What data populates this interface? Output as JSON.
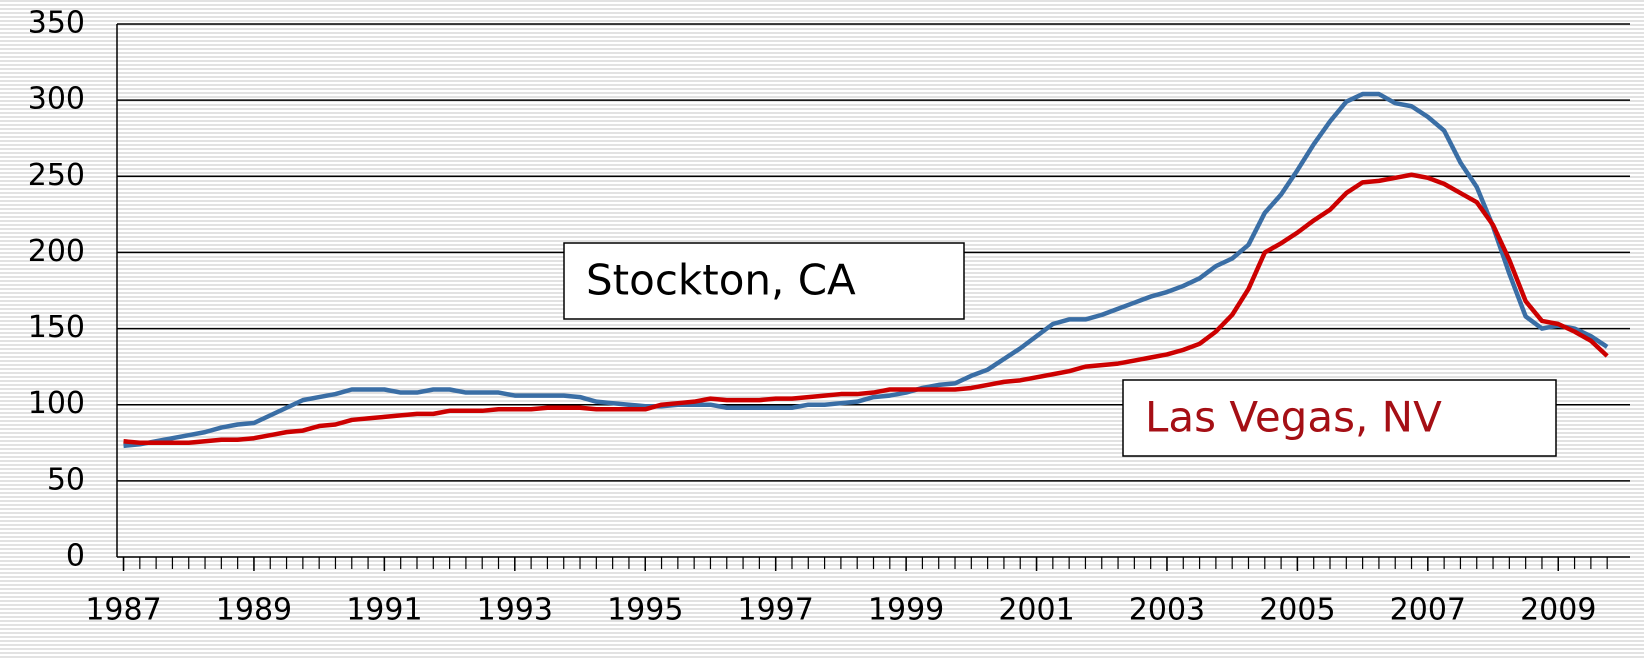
{
  "chart_data": {
    "type": "line",
    "x": [
      1987,
      1987.25,
      1987.5,
      1987.75,
      1988,
      1988.25,
      1988.5,
      1988.75,
      1989,
      1989.25,
      1989.5,
      1989.75,
      1990,
      1990.25,
      1990.5,
      1990.75,
      1991,
      1991.25,
      1991.5,
      1991.75,
      1992,
      1992.25,
      1992.5,
      1992.75,
      1993,
      1993.25,
      1993.5,
      1993.75,
      1994,
      1994.25,
      1994.5,
      1994.75,
      1995,
      1995.25,
      1995.5,
      1995.75,
      1996,
      1996.25,
      1996.5,
      1996.75,
      1997,
      1997.25,
      1997.5,
      1997.75,
      1998,
      1998.25,
      1998.5,
      1998.75,
      1999,
      1999.25,
      1999.5,
      1999.75,
      2000,
      2000.25,
      2000.5,
      2000.75,
      2001,
      2001.25,
      2001.5,
      2001.75,
      2002,
      2002.25,
      2002.5,
      2002.75,
      2003,
      2003.25,
      2003.5,
      2003.75,
      2004,
      2004.25,
      2004.5,
      2004.75,
      2005,
      2005.25,
      2005.5,
      2005.75,
      2006,
      2006.25,
      2006.5,
      2006.75,
      2007,
      2007.25,
      2007.5,
      2007.75,
      2008,
      2008.25,
      2008.5,
      2008.75,
      2009,
      2009.25,
      2009.5,
      2009.75
    ],
    "series": [
      {
        "name": "Stockton, CA",
        "color": "#3a6ea5",
        "values": [
          73,
          74,
          76,
          78,
          80,
          82,
          85,
          87,
          88,
          93,
          98,
          103,
          105,
          107,
          110,
          110,
          110,
          108,
          108,
          110,
          110,
          108,
          108,
          108,
          106,
          106,
          106,
          106,
          105,
          102,
          101,
          100,
          99,
          99,
          100,
          100,
          100,
          98,
          98,
          98,
          98,
          98,
          100,
          100,
          101,
          102,
          105,
          106,
          108,
          111,
          113,
          114,
          119,
          123,
          130,
          137,
          145,
          153,
          156,
          156,
          159,
          163,
          167,
          171,
          174,
          178,
          183,
          191,
          196,
          205,
          226,
          238,
          254,
          271,
          286,
          299,
          304,
          304,
          298,
          296,
          289,
          280,
          259,
          243,
          217,
          186,
          158,
          150,
          152,
          150,
          145,
          138
        ]
      },
      {
        "name": "Las Vegas, NV",
        "color": "#cc0000",
        "values": [
          76,
          75,
          75,
          75,
          75,
          76,
          77,
          77,
          78,
          80,
          82,
          83,
          86,
          87,
          90,
          91,
          92,
          93,
          94,
          94,
          96,
          96,
          96,
          97,
          97,
          97,
          98,
          98,
          98,
          97,
          97,
          97,
          97,
          100,
          101,
          102,
          104,
          103,
          103,
          103,
          104,
          104,
          105,
          106,
          107,
          107,
          108,
          110,
          110,
          110,
          110,
          110,
          111,
          113,
          115,
          116,
          118,
          120,
          122,
          125,
          126,
          127,
          129,
          131,
          133,
          136,
          140,
          148,
          159,
          176,
          200,
          206,
          213,
          221,
          228,
          239,
          246,
          247,
          249,
          251,
          249,
          245,
          239,
          233,
          218,
          195,
          168,
          155,
          153,
          148,
          142,
          132
        ]
      }
    ],
    "annotations": [
      {
        "text": "Stockton, CA",
        "color": "#000000"
      },
      {
        "text": "Las Vegas, NV",
        "color": "#a50f15"
      }
    ],
    "xlim": [
      1986.9,
      2010.1
    ],
    "xticks": [
      1987,
      1989,
      1991,
      1993,
      1995,
      1997,
      1999,
      2001,
      2003,
      2005,
      2007,
      2009
    ],
    "ylim": [
      0,
      350
    ],
    "yticks": [
      0,
      50,
      100,
      150,
      200,
      250,
      300,
      350
    ],
    "grid": true
  }
}
